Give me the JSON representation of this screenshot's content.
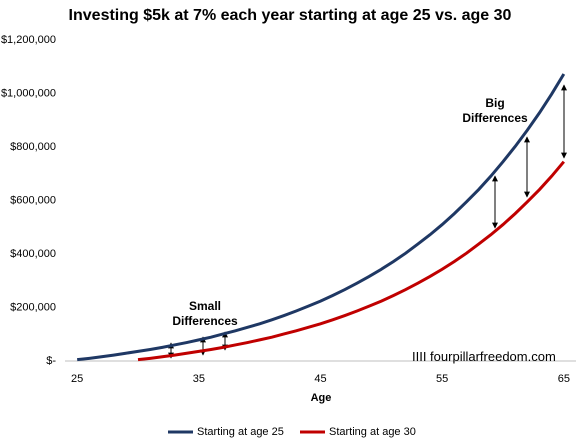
{
  "chart_data": {
    "type": "line",
    "title": "Investing $5k at 7% each year starting at age 25 vs. age 30",
    "x_label": "Age",
    "x": [
      25,
      26,
      27,
      28,
      29,
      30,
      31,
      32,
      33,
      34,
      35,
      36,
      37,
      38,
      39,
      40,
      41,
      42,
      43,
      44,
      45,
      46,
      47,
      48,
      49,
      50,
      51,
      52,
      53,
      54,
      55,
      56,
      57,
      58,
      59,
      60,
      61,
      62,
      63,
      64,
      65
    ],
    "series": [
      {
        "name": "Starting at age 25",
        "color": "#1f3864",
        "values": [
          5000,
          10000,
          16000,
          22000,
          29000,
          36000,
          43000,
          51000,
          60000,
          69000,
          79000,
          89000,
          101000,
          113000,
          126000,
          139000,
          154000,
          170000,
          187000,
          205000,
          224000,
          245000,
          267000,
          291000,
          316000,
          343000,
          372000,
          403000,
          437000,
          472000,
          510000,
          551000,
          595000,
          641000,
          691000,
          745000,
          802000,
          863000,
          928000,
          998000,
          1073000
        ]
      },
      {
        "name": "Starting at age 30",
        "color": "#c00000",
        "values": [
          null,
          null,
          null,
          null,
          null,
          5000,
          10000,
          16000,
          22000,
          29000,
          36000,
          43000,
          51000,
          60000,
          69000,
          79000,
          89000,
          101000,
          113000,
          126000,
          139000,
          154000,
          170000,
          187000,
          205000,
          224000,
          245000,
          267000,
          291000,
          316000,
          343000,
          372000,
          403000,
          437000,
          472000,
          510000,
          551000,
          595000,
          641000,
          691000,
          745000
        ]
      }
    ],
    "xlim": [
      24,
      66
    ],
    "xticks": [
      25,
      35,
      45,
      55,
      65
    ],
    "ylim": [
      0,
      1200000
    ],
    "yticks": [
      {
        "value": 0,
        "label": "$-"
      },
      {
        "value": 200000,
        "label": "$200,000"
      },
      {
        "value": 400000,
        "label": "$400,000"
      },
      {
        "value": 600000,
        "label": "$600,000"
      },
      {
        "value": 800000,
        "label": "$800,000"
      },
      {
        "value": 1000000,
        "label": "$1,000,000"
      },
      {
        "value": 1200000,
        "label": "$1,200,000"
      }
    ],
    "legend": "bottom",
    "annotations": [
      "Small Differences",
      "Big Differences",
      "IIII fourpillarfreedom.com"
    ]
  }
}
